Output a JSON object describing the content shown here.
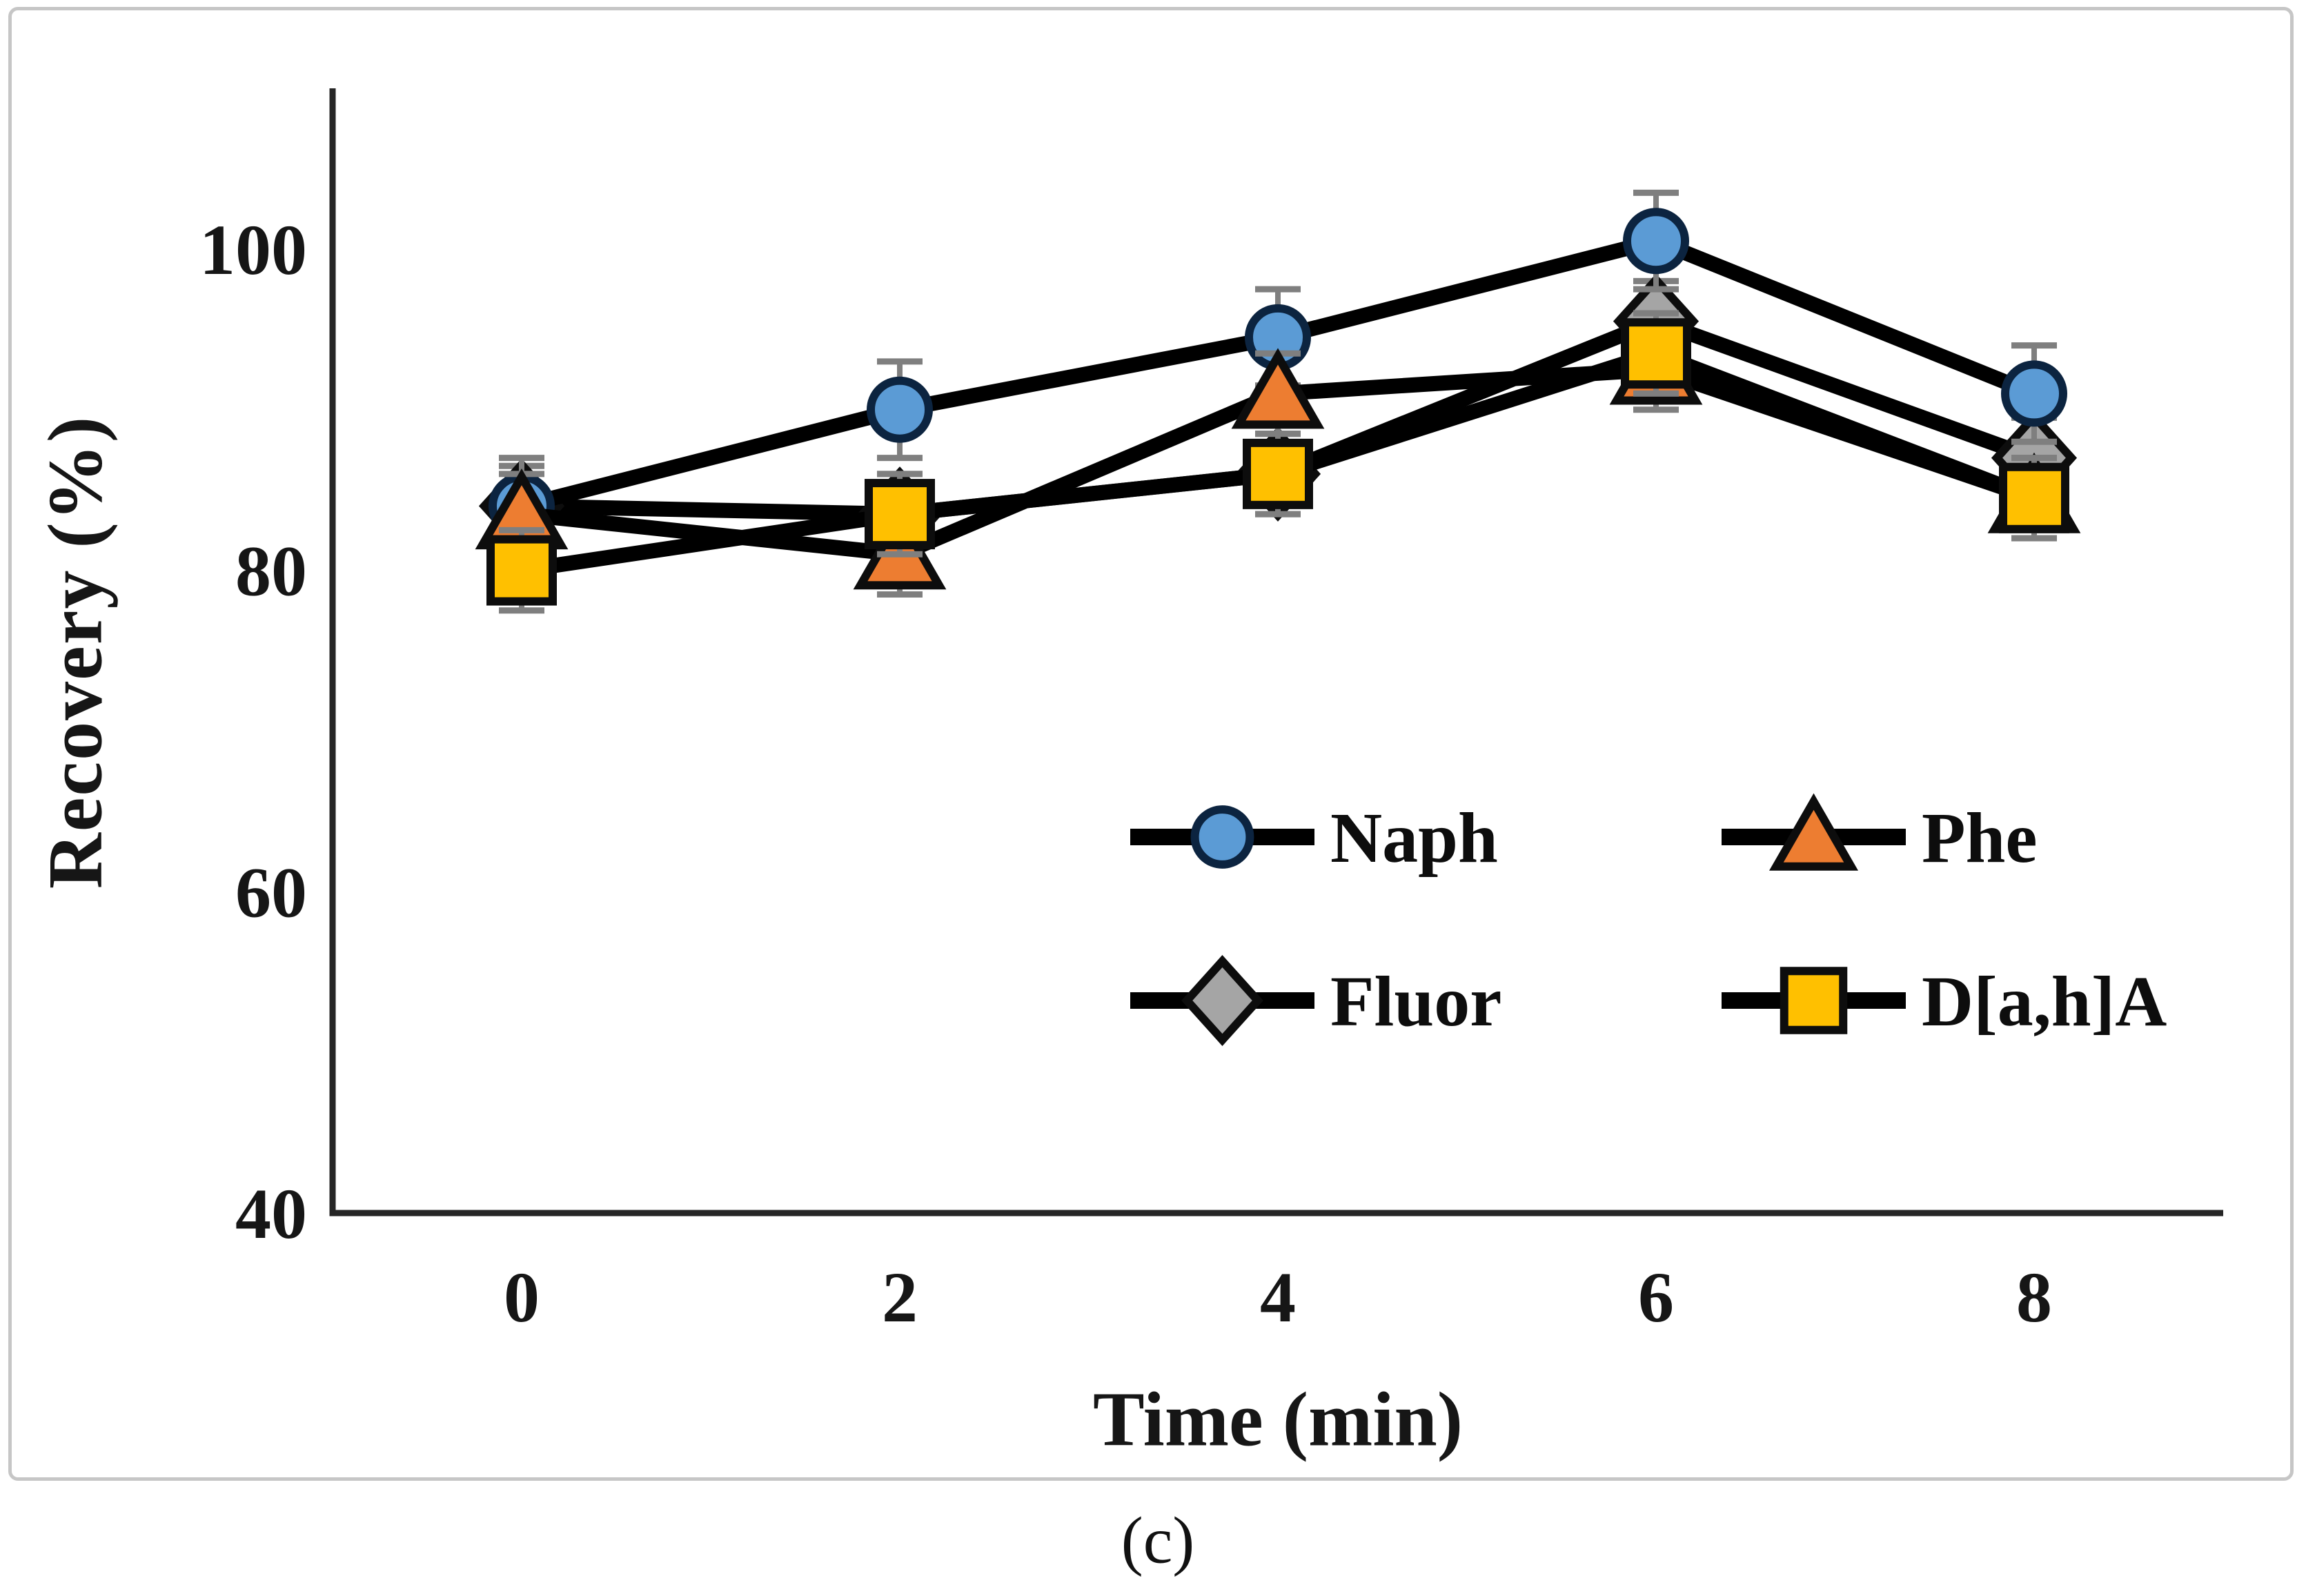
{
  "figure": {
    "caption": "(c)",
    "background": "#ffffff",
    "frame_color": "#c6c6c6"
  },
  "chart_data": {
    "type": "line",
    "title": "",
    "xlabel": "Time (min)",
    "ylabel": "Recovery (%)",
    "x": [
      0,
      2,
      4,
      6,
      8
    ],
    "x_tick_labels": [
      "0",
      "2",
      "4",
      "6",
      "8"
    ],
    "y_ticks": [
      40,
      60,
      80,
      100
    ],
    "ylim": [
      40,
      110
    ],
    "grid": false,
    "legend_position": "inside-lower-right",
    "legend_order": [
      "Naph",
      "Phe",
      "Fluor",
      "D[a,h]A"
    ],
    "line_color": "#000000",
    "axis_color": "#262626",
    "error_bar_color": "#7f7f7f",
    "series": [
      {
        "name": "Naph",
        "marker": "circle",
        "fill": "#5b9bd5",
        "stroke": "#0c2440",
        "values": [
          84.0,
          90.0,
          94.5,
          100.5,
          91.0
        ],
        "error": [
          3.0,
          3.0,
          3.0,
          3.0,
          3.0
        ]
      },
      {
        "name": "Phe",
        "marker": "triangle",
        "fill": "#ed7d31",
        "stroke": "#0d0d0d",
        "values": [
          83.5,
          81.0,
          91.0,
          92.5,
          84.5
        ],
        "error": [
          2.5,
          2.5,
          2.5,
          2.5,
          2.5
        ]
      },
      {
        "name": "Fluor",
        "marker": "diamond",
        "fill": "#a5a5a5",
        "stroke": "#0d0d0d",
        "values": [
          84.0,
          83.5,
          86.0,
          95.5,
          87.0
        ],
        "error": [
          2.5,
          2.5,
          2.5,
          2.5,
          2.5
        ]
      },
      {
        "name": "D[a,h]A",
        "marker": "square",
        "fill": "#ffc000",
        "stroke": "#0d0d0d",
        "values": [
          80.0,
          83.5,
          86.0,
          93.5,
          84.5
        ],
        "error": [
          2.5,
          2.5,
          2.5,
          2.5,
          2.5
        ]
      }
    ]
  }
}
